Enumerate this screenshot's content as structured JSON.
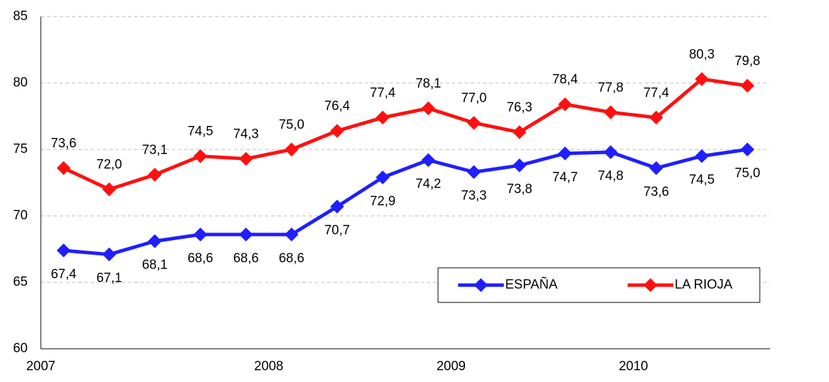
{
  "chart_data": {
    "type": "line",
    "categories": [
      "2007",
      null,
      null,
      null,
      null,
      "2008",
      null,
      null,
      null,
      "2009",
      null,
      null,
      null,
      "2010",
      null,
      null
    ],
    "series": [
      {
        "name": "ESPAÑA",
        "color": "#1f1fff",
        "values": [
          67.4,
          67.1,
          68.1,
          68.6,
          68.6,
          68.6,
          70.7,
          72.9,
          74.2,
          73.3,
          73.8,
          74.7,
          74.8,
          73.6,
          74.5,
          75.0
        ],
        "value_labels": [
          "67,4",
          "67,1",
          "68,1",
          "68,6",
          "68,6",
          "68,6",
          "70,7",
          "72,9",
          "74,2",
          "73,3",
          "73,8",
          "74,7",
          "74,8",
          "73,6",
          "74,5",
          "75,0"
        ]
      },
      {
        "name": "LA RIOJA",
        "color": "#ff1010",
        "values": [
          73.6,
          72.0,
          73.1,
          74.5,
          74.3,
          75.0,
          76.4,
          77.4,
          78.1,
          77.0,
          76.3,
          78.4,
          77.8,
          77.4,
          80.3,
          79.8
        ],
        "value_labels": [
          "73,6",
          "72,0",
          "73,1",
          "74,5",
          "74,3",
          "75,0",
          "76,4",
          "77,4",
          "78,1",
          "77,0",
          "76,3",
          "78,4",
          "77,8",
          "77,4",
          "80,3",
          "79,8"
        ]
      }
    ],
    "ylim": [
      60,
      85
    ],
    "yticks": [
      60,
      65,
      70,
      75,
      80,
      85
    ],
    "grid": true,
    "legend": "bottom-right"
  }
}
